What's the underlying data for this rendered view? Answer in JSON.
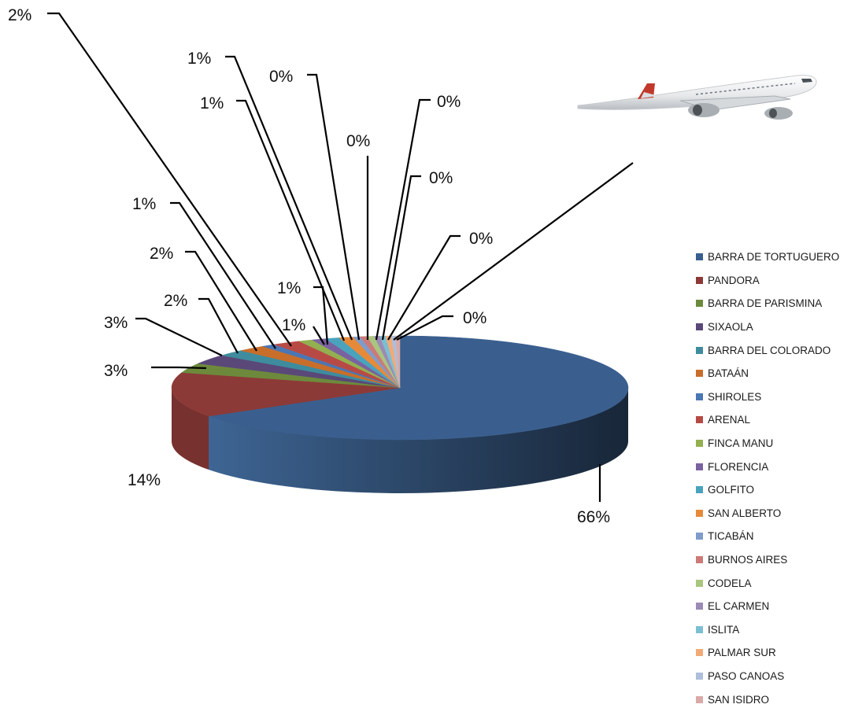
{
  "chart_data": {
    "type": "pie",
    "style": "3d-exploded-leader-labels",
    "categories": [
      "BARRA DE TORTUGUERO",
      "PANDORA",
      "BARRA DE PARISMINA",
      "SIXAOLA",
      "BARRA DEL COLORADO",
      "BATAÁN",
      "SHIROLES",
      "ARENAL",
      "FINCA MANU",
      "FLORENCIA",
      "GOLFITO",
      "SAN ALBERTO",
      "TICABÁN",
      "BURNOS AIRES",
      "CODELA",
      "EL CARMEN",
      "ISLITA",
      "PALMAR SUR",
      "PASO CANOAS",
      "SAN ISIDRO"
    ],
    "values": [
      66,
      14,
      3,
      3,
      2,
      2,
      1,
      2,
      1,
      1,
      1,
      1,
      0.5,
      0.5,
      0.5,
      0.4,
      0.4,
      0.4,
      0.3,
      0.3
    ],
    "data_labels": [
      "66%",
      "14%",
      "3%",
      "3%",
      "2%",
      "2%",
      "1%",
      "2%",
      "1%",
      "1%",
      "1%",
      "1%",
      "0%",
      "0%",
      "0%",
      "0%",
      "0%",
      "0%",
      "0%",
      "0%"
    ],
    "colors": [
      "#3a5f8f",
      "#8c3a37",
      "#6d8a3c",
      "#5a4878",
      "#3e8c9e",
      "#c96e2a",
      "#4a77b4",
      "#b84a46",
      "#93b050",
      "#7a62a0",
      "#4aa3bd",
      "#e68a3a",
      "#7f9ccb",
      "#cc7a78",
      "#a9c57f",
      "#9b8bb6",
      "#7dbfd2",
      "#f2aa76",
      "#aebedb",
      "#d9aaa8"
    ],
    "legend_position": "right"
  },
  "decor": {
    "image": "airplane-photo"
  }
}
